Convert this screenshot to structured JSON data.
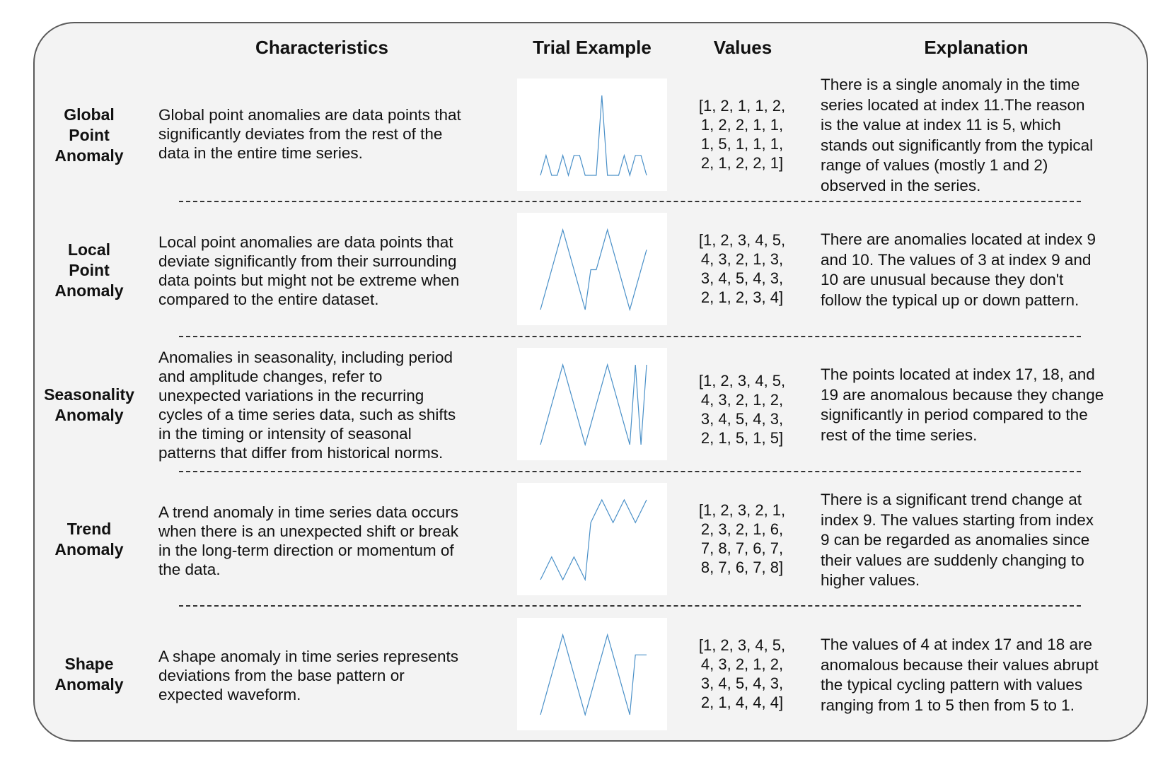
{
  "headers": {
    "characteristics": "Characteristics",
    "trial_example": "Trial Example",
    "values": "Values",
    "explanation": "Explanation"
  },
  "colors": {
    "panel_background": "#f3f3f3",
    "panel_border": "#5a5a5a",
    "sparkline": "#4a90c8",
    "divider": "#333333"
  },
  "rows": [
    {
      "name_lines": [
        "Global",
        "Point",
        "Anomaly"
      ],
      "description_lines": [
        "Global point anomalies are data points that",
        "significantly deviates from the rest of the",
        "data in the entire time series."
      ],
      "values_lines": [
        "[1, 2, 1, 1, 2,",
        "1, 2, 2, 1, 1,",
        "1, 5, 1, 1, 1,",
        "2, 1, 2, 2, 1]"
      ],
      "series": [
        1,
        2,
        1,
        1,
        2,
        1,
        2,
        2,
        1,
        1,
        1,
        5,
        1,
        1,
        1,
        2,
        1,
        2,
        2,
        1
      ],
      "explanation_lines": [
        "There is a single anomaly in the time",
        "series located at index 11.The reason",
        "is the value at index 11 is 5, which",
        "stands out significantly from the typical",
        "range of values (mostly 1 and 2)",
        "observed in the series."
      ]
    },
    {
      "name_lines": [
        "Local",
        "Point",
        "Anomaly"
      ],
      "description_lines": [
        "Local point anomalies are data points that",
        "deviate significantly from their surrounding",
        "data points but might not be extreme when",
        "compared to the entire dataset."
      ],
      "values_lines": [
        "[1, 2, 3, 4, 5,",
        "4, 3, 2, 1, 3,",
        "3, 4, 5, 4, 3,",
        "2, 1, 2, 3, 4]"
      ],
      "series": [
        1,
        2,
        3,
        4,
        5,
        4,
        3,
        2,
        1,
        3,
        3,
        4,
        5,
        4,
        3,
        2,
        1,
        2,
        3,
        4
      ],
      "explanation_lines": [
        "There are anomalies located at index 9",
        "and 10. The values of 3 at index 9 and",
        "10 are unusual because they don't",
        "follow the typical up or down pattern."
      ]
    },
    {
      "name_lines": [
        "Seasonality",
        "Anomaly"
      ],
      "description_lines": [
        "Anomalies in seasonality, including period",
        "and amplitude changes, refer to",
        "unexpected variations in the recurring",
        "cycles of a time series data, such as shifts",
        "in the timing or intensity of seasonal",
        "patterns that differ from historical norms."
      ],
      "values_lines": [
        "[1, 2, 3, 4, 5,",
        "4, 3, 2, 1, 2,",
        "3, 4, 5, 4, 3,",
        "2, 1, 5, 1, 5]"
      ],
      "series": [
        1,
        2,
        3,
        4,
        5,
        4,
        3,
        2,
        1,
        2,
        3,
        4,
        5,
        4,
        3,
        2,
        1,
        5,
        1,
        5
      ],
      "explanation_lines": [
        "The points located at index 17, 18, and",
        "19 are anomalous because they change",
        "significantly in period compared to the",
        "rest of the time series."
      ]
    },
    {
      "name_lines": [
        "Trend",
        "Anomaly"
      ],
      "description_lines": [
        "A trend anomaly in time series data occurs",
        "when there is an unexpected shift or break",
        "in the long-term direction or momentum of",
        "the data."
      ],
      "values_lines": [
        "[1, 2, 3, 2, 1,",
        "2, 3, 2, 1, 6,",
        "7, 8, 7, 6, 7,",
        "8, 7, 6, 7, 8]"
      ],
      "series": [
        1,
        2,
        3,
        2,
        1,
        2,
        3,
        2,
        1,
        6,
        7,
        8,
        7,
        6,
        7,
        8,
        7,
        6,
        7,
        8
      ],
      "explanation_lines": [
        "There is a significant trend change at",
        "index 9. The values starting from index",
        "9 can be regarded as anomalies since",
        "their values are suddenly changing to",
        "higher values."
      ]
    },
    {
      "name_lines": [
        "Shape",
        "Anomaly"
      ],
      "description_lines": [
        "A shape anomaly in time series represents",
        "deviations from the base pattern or",
        "expected waveform."
      ],
      "values_lines": [
        "[1, 2, 3, 4, 5,",
        "4, 3, 2, 1, 2,",
        "3, 4, 5, 4, 3,",
        "2, 1, 4, 4, 4]"
      ],
      "series": [
        1,
        2,
        3,
        4,
        5,
        4,
        3,
        2,
        1,
        2,
        3,
        4,
        5,
        4,
        3,
        2,
        1,
        4,
        4,
        4
      ],
      "explanation_lines": [
        "The values of 4 at index 17 and 18 are",
        "anomalous because their values abrupt",
        "the typical cycling pattern with values",
        "ranging from 1 to 5 then from 5 to 1."
      ]
    }
  ]
}
